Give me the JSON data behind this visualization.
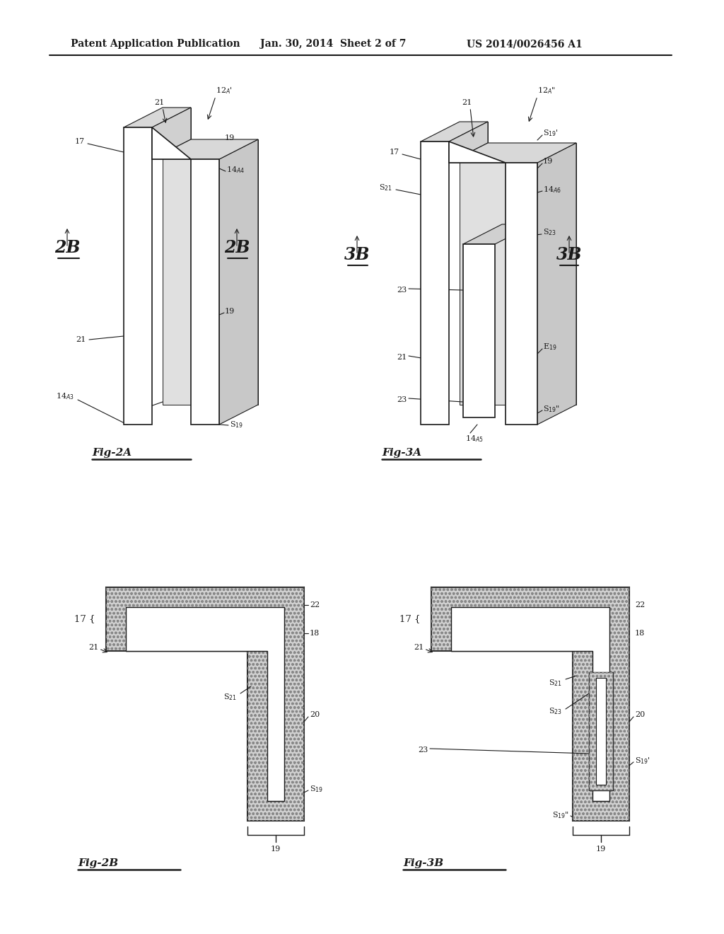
{
  "bg_color": "#ffffff",
  "header_left": "Patent Application Publication",
  "header_mid": "Jan. 30, 2014  Sheet 2 of 7",
  "header_right": "US 2014/0026456 A1",
  "fig2a_label": "Fig-2A",
  "fig3a_label": "Fig-3A",
  "fig2b_label": "Fig-2B",
  "fig3b_label": "Fig-3B",
  "lc": "#1a1a1a",
  "gray1": "#c8c8c8",
  "gray2": "#d8d8d8",
  "gray3": "#e8e8e8",
  "white": "#ffffff"
}
